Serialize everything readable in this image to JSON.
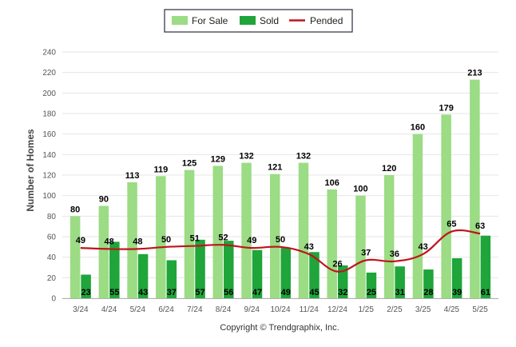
{
  "chart_data": {
    "type": "bar",
    "title": "",
    "xlabel": "",
    "ylabel": "Number of Homes",
    "ylim": [
      0,
      240
    ],
    "yticks": [
      0,
      20,
      40,
      60,
      80,
      100,
      120,
      140,
      160,
      180,
      200,
      220,
      240
    ],
    "grid": true,
    "legend_position": "top-center",
    "categories": [
      "3/24",
      "4/24",
      "5/24",
      "6/24",
      "7/24",
      "8/24",
      "9/24",
      "10/24",
      "11/24",
      "12/24",
      "1/25",
      "2/25",
      "3/25",
      "4/25",
      "5/25"
    ],
    "series": [
      {
        "name": "For Sale",
        "type": "bar",
        "color": "#9bdc84",
        "values": [
          80,
          90,
          113,
          119,
          125,
          129,
          132,
          121,
          132,
          106,
          100,
          120,
          160,
          179,
          213
        ]
      },
      {
        "name": "Sold",
        "type": "bar",
        "color": "#1fa53a",
        "values": [
          23,
          55,
          43,
          37,
          57,
          56,
          47,
          49,
          45,
          32,
          25,
          31,
          28,
          39,
          61
        ]
      },
      {
        "name": "Pended",
        "type": "line",
        "color": "#c0141c",
        "values": [
          49,
          48,
          48,
          50,
          51,
          52,
          49,
          50,
          43,
          26,
          37,
          36,
          43,
          65,
          63
        ]
      }
    ]
  },
  "footer": {
    "copyright": "Copyright © Trendgraphix, Inc."
  }
}
